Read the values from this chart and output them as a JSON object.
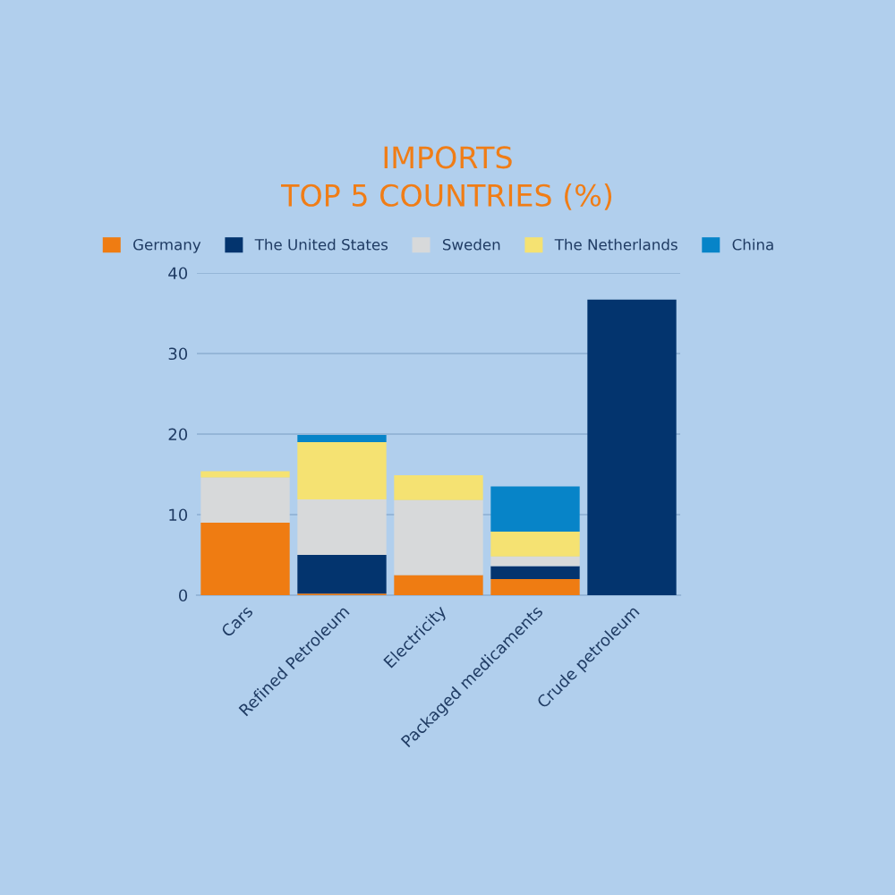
{
  "chart_data": {
    "type": "bar",
    "title": "IMPORTS\nTOP 5 COUNTRIES (%)",
    "stacked": true,
    "categories": [
      "Cars",
      "Refined Petroleum",
      "Electricity",
      "Packaged medicaments",
      "Crude petroleum"
    ],
    "series": [
      {
        "name": "Germany",
        "color": "#ef7c12",
        "values": [
          9.0,
          0.2,
          2.5,
          2.0,
          null
        ]
      },
      {
        "name": "The United States",
        "color": "#03346e",
        "values": [
          null,
          4.8,
          null,
          1.6,
          36.7
        ]
      },
      {
        "name": "Sweden",
        "color": "#d7d9da",
        "values": [
          5.6,
          6.9,
          9.3,
          1.2,
          null
        ]
      },
      {
        "name": "The Netherlands",
        "color": "#f5e272",
        "values": [
          0.8,
          7.1,
          3.1,
          3.1,
          null
        ]
      },
      {
        "name": "China",
        "color": "#0784c8",
        "values": [
          null,
          0.9,
          null,
          5.6,
          null
        ]
      }
    ],
    "ylim": [
      0,
      40
    ],
    "yticks": [
      0,
      10,
      20,
      30,
      40
    ],
    "grid": "y",
    "legend": "top"
  }
}
